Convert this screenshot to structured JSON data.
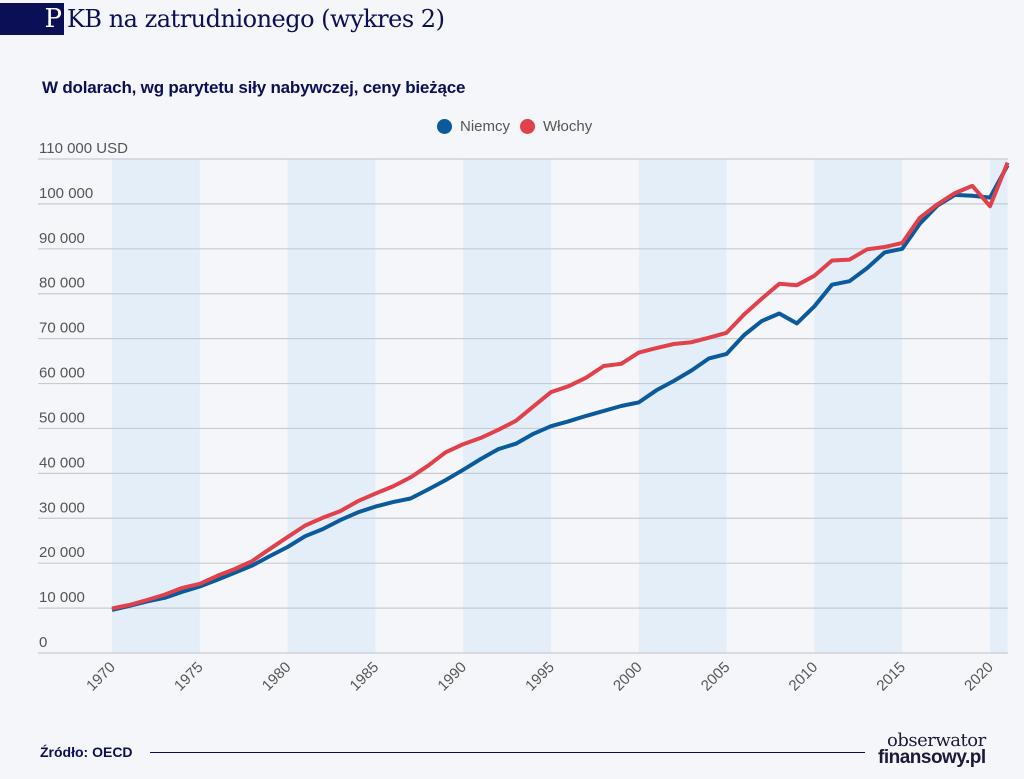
{
  "header": {
    "title_initial": "P",
    "title_rest": "KB na zatrudnionego (wykres 2)",
    "subtitle": "W dolarach, wg parytetu siły nabywczej, ceny bieżące"
  },
  "footer": {
    "source": "Źródło: OECD",
    "logo_line1": "obserwator",
    "logo_line2": "finansowy.pl"
  },
  "colors": {
    "brand": "#0b0f55",
    "niemcy": "#0a5a9c",
    "wlochy": "#e0414a",
    "band": "#e3eef8",
    "grid": "#c8cbd0"
  },
  "chart_data": {
    "type": "line",
    "title": "PKB na zatrudnionego (wykres 2)",
    "subtitle": "W dolarach, wg parytetu siły nabywczej, ceny bieżące",
    "xlabel": "",
    "ylabel": "USD",
    "ylim": [
      0,
      110000
    ],
    "xlim": [
      1970,
      2021
    ],
    "grid": true,
    "legend_position": "top-center",
    "y_ticks": [
      0,
      10000,
      20000,
      30000,
      40000,
      50000,
      60000,
      70000,
      80000,
      90000,
      100000,
      110000
    ],
    "y_tick_labels": [
      "0",
      "10 000",
      "20 000",
      "30 000",
      "40 000",
      "50 000",
      "60 000",
      "70 000",
      "80 000",
      "90 000",
      "100 000",
      "110 000 USD"
    ],
    "x_ticks": [
      1970,
      1975,
      1980,
      1985,
      1990,
      1995,
      2000,
      2005,
      2010,
      2015,
      2020
    ],
    "x_tick_labels": [
      "1970",
      "1975",
      "1980",
      "1985",
      "1990",
      "1995",
      "2000",
      "2005",
      "2010",
      "2015",
      "2020"
    ],
    "shaded_bands": [
      [
        1970,
        1975
      ],
      [
        1980,
        1985
      ],
      [
        1990,
        1995
      ],
      [
        2000,
        2005
      ],
      [
        2010,
        2015
      ],
      [
        2020,
        2021
      ]
    ],
    "x": [
      1970,
      1971,
      1972,
      1973,
      1974,
      1975,
      1976,
      1977,
      1978,
      1979,
      1980,
      1981,
      1982,
      1983,
      1984,
      1985,
      1986,
      1987,
      1988,
      1989,
      1990,
      1991,
      1992,
      1993,
      1994,
      1995,
      1996,
      1997,
      1998,
      1999,
      2000,
      2001,
      2002,
      2003,
      2004,
      2005,
      2006,
      2007,
      2008,
      2009,
      2010,
      2011,
      2012,
      2013,
      2014,
      2015,
      2016,
      2017,
      2018,
      2019,
      2020,
      2021
    ],
    "series": [
      {
        "name": "Niemcy",
        "color": "#0a5a9c",
        "values": [
          9600,
          10500,
          11500,
          12300,
          13600,
          14800,
          16300,
          17900,
          19500,
          21600,
          23600,
          26000,
          27600,
          29600,
          31300,
          32600,
          33600,
          34400,
          36400,
          38500,
          40800,
          43200,
          45400,
          46600,
          48800,
          50500,
          51600,
          52800,
          53900,
          55000,
          55800,
          58500,
          60600,
          62900,
          65600,
          66600,
          70800,
          73900,
          75600,
          73400,
          77200,
          82000,
          82800,
          85700,
          89200,
          90000,
          95600,
          99600,
          102000,
          101800,
          101400,
          108600
        ]
      },
      {
        "name": "Włochy",
        "color": "#e0414a",
        "values": [
          9900,
          10700,
          11800,
          13000,
          14500,
          15400,
          17200,
          18700,
          20500,
          23200,
          25800,
          28400,
          30100,
          31600,
          33800,
          35500,
          37100,
          39100,
          41700,
          44700,
          46500,
          47900,
          49700,
          51700,
          54900,
          58100,
          59400,
          61300,
          63900,
          64400,
          66900,
          67900,
          68800,
          69200,
          70200,
          71300,
          75400,
          78900,
          82200,
          81900,
          84000,
          87400,
          87600,
          89900,
          90400,
          91300,
          96900,
          99900,
          102400,
          104000,
          99500,
          109200
        ]
      }
    ]
  }
}
